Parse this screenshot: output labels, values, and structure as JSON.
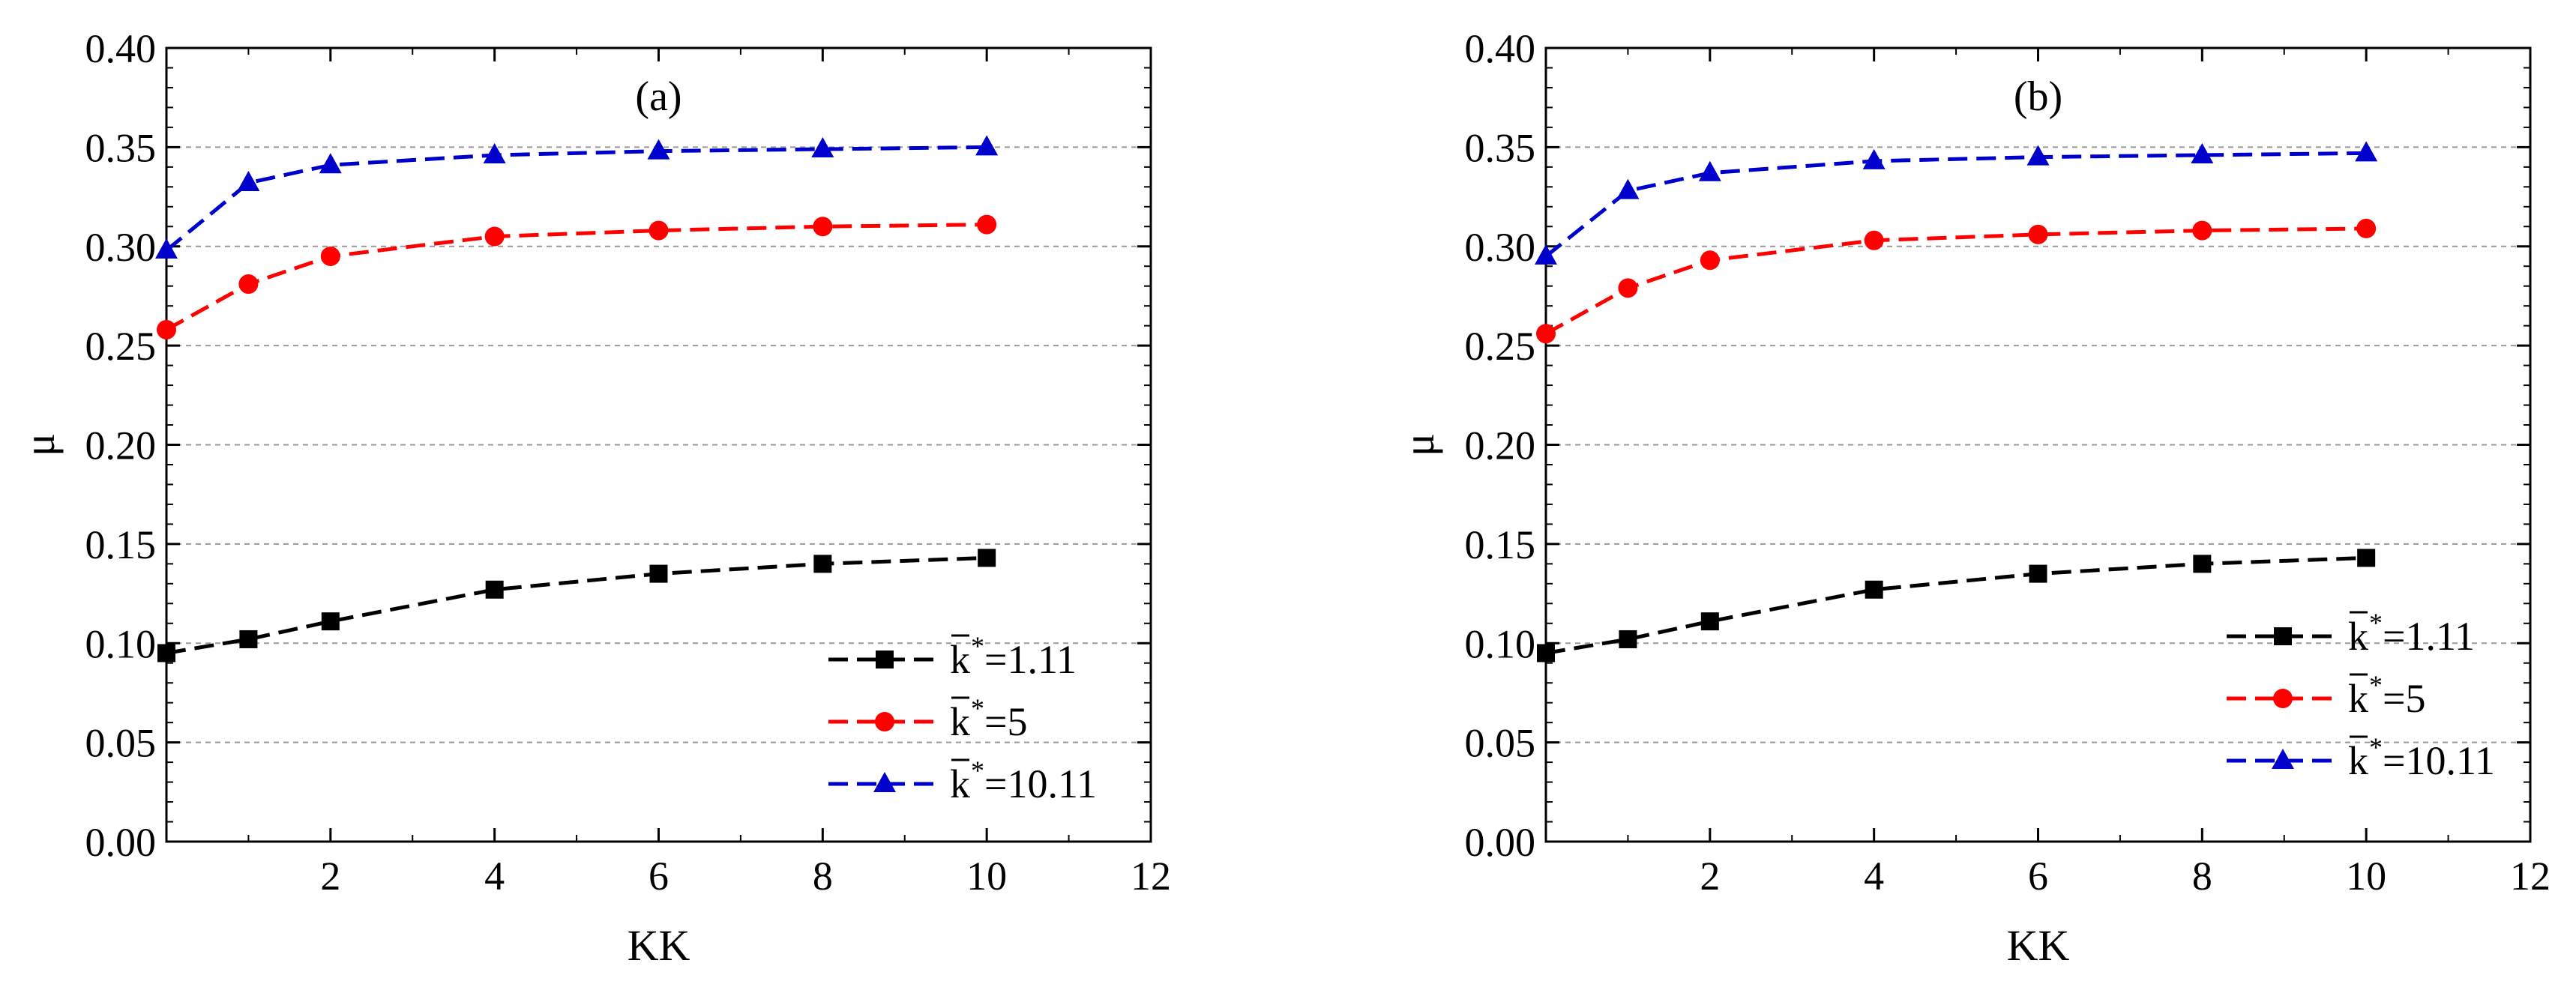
{
  "colors": {
    "series_black": "#000000",
    "series_red": "#ff0000",
    "series_blue": "#0000cc",
    "grid": "#999999"
  },
  "chart_data": [
    {
      "type": "line",
      "title": "(a)",
      "xlabel": "KK",
      "ylabel": "μ",
      "xlim": [
        0,
        12
      ],
      "ylim": [
        0.0,
        0.4
      ],
      "xticks": [
        2,
        4,
        6,
        8,
        10,
        12
      ],
      "yticks": [
        0.0,
        0.05,
        0.1,
        0.15,
        0.2,
        0.25,
        0.3,
        0.35,
        0.4
      ],
      "ytick_labels": [
        "0.00",
        "0.05",
        "0.10",
        "0.15",
        "0.20",
        "0.25",
        "0.30",
        "0.35",
        "0.40"
      ],
      "grid": "horizontal dashed",
      "legend_position": "bottom-right",
      "x": [
        0,
        1,
        2,
        4,
        6,
        8,
        10
      ],
      "series": [
        {
          "name": "k̄*=1.11",
          "legend_k": "k",
          "legend_value": "=1.11",
          "marker": "square",
          "color": "#000000",
          "values": [
            0.095,
            0.102,
            0.111,
            0.127,
            0.135,
            0.14,
            0.143
          ]
        },
        {
          "name": "k̄*=5",
          "legend_k": "k",
          "legend_value": "=5",
          "marker": "circle",
          "color": "#ff0000",
          "values": [
            0.258,
            0.281,
            0.295,
            0.305,
            0.308,
            0.31,
            0.311
          ]
        },
        {
          "name": "k̄*=10.11",
          "legend_k": "k",
          "legend_value": "=10.11",
          "marker": "triangle",
          "color": "#0000cc",
          "values": [
            0.298,
            0.332,
            0.341,
            0.346,
            0.348,
            0.349,
            0.35
          ]
        }
      ]
    },
    {
      "type": "line",
      "title": "(b)",
      "xlabel": "KK",
      "ylabel": "μ",
      "xlim": [
        0,
        12
      ],
      "ylim": [
        0.0,
        0.4
      ],
      "xticks": [
        2,
        4,
        6,
        8,
        10,
        12
      ],
      "yticks": [
        0.0,
        0.05,
        0.1,
        0.15,
        0.2,
        0.25,
        0.3,
        0.35,
        0.4
      ],
      "ytick_labels": [
        "0.00",
        "0.05",
        "0.10",
        "0.15",
        "0.20",
        "0.25",
        "0.30",
        "0.35",
        "0.40"
      ],
      "grid": "horizontal dashed",
      "legend_position": "bottom-right",
      "x": [
        0,
        1,
        2,
        4,
        6,
        8,
        10
      ],
      "series": [
        {
          "name": "k̄*=1.11",
          "legend_k": "k",
          "legend_value": "=1.11",
          "marker": "square",
          "color": "#000000",
          "values": [
            0.095,
            0.102,
            0.111,
            0.127,
            0.135,
            0.14,
            0.143
          ]
        },
        {
          "name": "k̄*=5",
          "legend_k": "k",
          "legend_value": "=5",
          "marker": "circle",
          "color": "#ff0000",
          "values": [
            0.256,
            0.279,
            0.293,
            0.303,
            0.306,
            0.308,
            0.309
          ]
        },
        {
          "name": "k̄*=10.11",
          "legend_k": "k",
          "legend_value": "=10.11",
          "marker": "triangle",
          "color": "#0000cc",
          "values": [
            0.295,
            0.328,
            0.337,
            0.343,
            0.345,
            0.346,
            0.347
          ]
        }
      ]
    }
  ]
}
